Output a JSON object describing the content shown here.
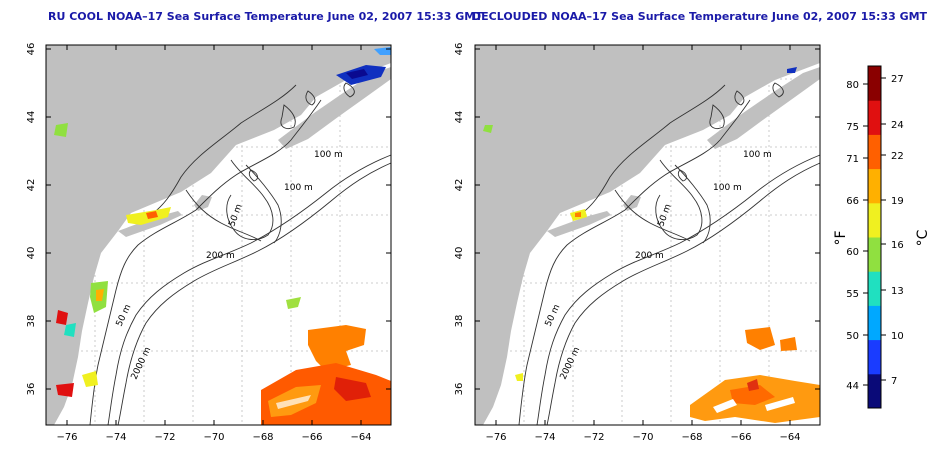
{
  "panels": [
    {
      "title": "RU COOL NOAA–17 Sea Surface Temperature June 02, 2007 15:33 GMT",
      "contours": [
        "100 m",
        "100 m",
        "50 m",
        "200 m",
        "50 m",
        "2000 m"
      ]
    },
    {
      "title": "DECLOUDED NOAA–17 Sea Surface Temperature June 02, 2007 15:33 GMT",
      "contours": [
        "100 m",
        "100 m",
        "50 m",
        "200 m",
        "50 m",
        "2000 m"
      ]
    }
  ],
  "axes": {
    "lon_ticks": [
      "−76",
      "−74",
      "−72",
      "−70",
      "−68",
      "−66",
      "−64"
    ],
    "lat_ticks": [
      "36",
      "38",
      "40",
      "42",
      "44",
      "46"
    ]
  },
  "colorbar": {
    "f_label": "°F",
    "c_label": "°C",
    "f_ticks": [
      "80",
      "75",
      "71",
      "66",
      "60",
      "55",
      "50",
      "44"
    ],
    "c_ticks": [
      "27",
      "24",
      "22",
      "19",
      "16",
      "13",
      "10",
      "7"
    ],
    "colors": [
      "#0a0a78",
      "#1a3cff",
      "#00a8ff",
      "#20e0c0",
      "#90e040",
      "#f0f020",
      "#ffb000",
      "#ff6000",
      "#e01010",
      "#8a0000"
    ]
  },
  "colors": {
    "land": "#c0c0c0",
    "ocean": "#ffffff",
    "title": "#1a1aa8"
  }
}
